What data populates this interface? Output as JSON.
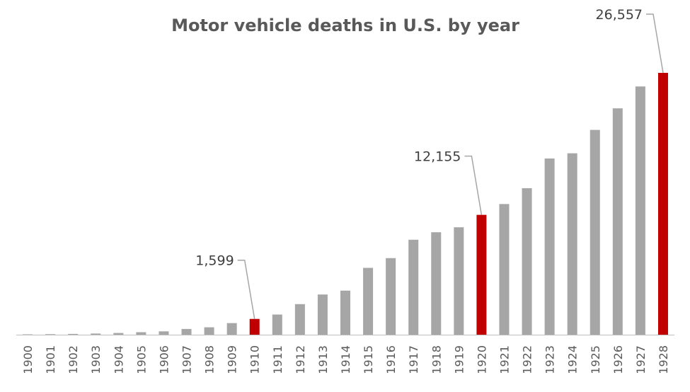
{
  "chart_data": {
    "type": "bar",
    "title": "Motor vehicle deaths in U.S. by year",
    "xlabel": "",
    "ylabel": "",
    "categories": [
      "1900",
      "1901",
      "1902",
      "1903",
      "1904",
      "1905",
      "1906",
      "1907",
      "1908",
      "1909",
      "1910",
      "1911",
      "1912",
      "1913",
      "1914",
      "1915",
      "1916",
      "1917",
      "1918",
      "1919",
      "1920",
      "1921",
      "1922",
      "1923",
      "1924",
      "1925",
      "1926",
      "1927",
      "1928"
    ],
    "values": [
      36,
      54,
      79,
      117,
      172,
      252,
      338,
      581,
      751,
      1174,
      1599,
      2043,
      3100,
      4076,
      4468,
      6779,
      7766,
      9630,
      10390,
      10896,
      12155,
      13253,
      14859,
      17870,
      18400,
      20771,
      22958,
      25177,
      26557
    ],
    "ylim": [
      0,
      30000
    ],
    "grid": false,
    "legend": "none",
    "highlighted": [
      "1910",
      "1920",
      "1928"
    ],
    "data_labels": [
      {
        "category": "1910",
        "text": "1,599"
      },
      {
        "category": "1920",
        "text": "12,155"
      },
      {
        "category": "1928",
        "text": "26,557"
      }
    ],
    "colors": {
      "bar": "#a6a6a6",
      "highlight": "#c00000",
      "title": "#595959",
      "label": "#404040",
      "tick": "#595959",
      "axis": "#bfbfbf",
      "leader": "#a6a6a6"
    }
  }
}
